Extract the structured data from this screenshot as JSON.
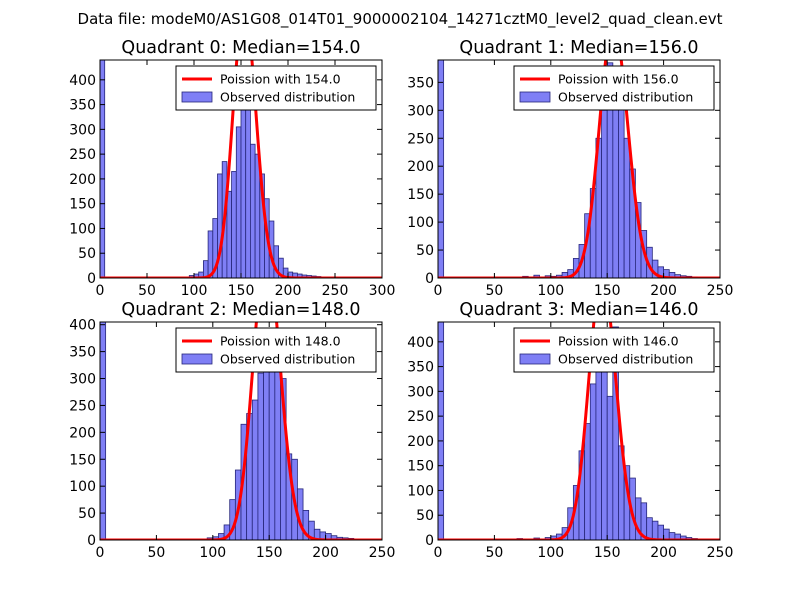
{
  "figure_title": "Data file: modeM0/AS1G08_014T01_9000002104_14271cztM0_level2_quad_clean.evt",
  "colors": {
    "bar_fill": "#7f7ff5",
    "bar_edge": "#26267a",
    "fit_line": "#ff0000",
    "axes": "#000000"
  },
  "chart_data": [
    {
      "type": "bar",
      "title": "Quadrant 0: Median=154.0",
      "median": 154.0,
      "bin_width": 5,
      "xlim": [
        0,
        300
      ],
      "ylim": [
        0,
        440
      ],
      "xticks": [
        0,
        50,
        100,
        150,
        200,
        250,
        300
      ],
      "yticks": [
        0,
        50,
        100,
        150,
        200,
        250,
        300,
        350,
        400
      ],
      "xtick_labels": [
        "0",
        "50",
        "100",
        "150",
        "200",
        "250",
        "300"
      ],
      "ytick_labels": [
        "0",
        "50",
        "100",
        "150",
        "200",
        "250",
        "300",
        "350",
        "400"
      ],
      "legend": {
        "position": "top-right",
        "entries": [
          "Poission with 154.0",
          "Observed distribution"
        ]
      },
      "bins": [
        {
          "x": 0,
          "count": 440
        },
        {
          "x": 95,
          "count": 5
        },
        {
          "x": 100,
          "count": 8
        },
        {
          "x": 105,
          "count": 12
        },
        {
          "x": 110,
          "count": 35
        },
        {
          "x": 115,
          "count": 95
        },
        {
          "x": 120,
          "count": 120
        },
        {
          "x": 125,
          "count": 210
        },
        {
          "x": 130,
          "count": 235
        },
        {
          "x": 135,
          "count": 175
        },
        {
          "x": 140,
          "count": 215
        },
        {
          "x": 145,
          "count": 305
        },
        {
          "x": 150,
          "count": 420
        },
        {
          "x": 155,
          "count": 360
        },
        {
          "x": 160,
          "count": 270
        },
        {
          "x": 165,
          "count": 250
        },
        {
          "x": 170,
          "count": 210
        },
        {
          "x": 175,
          "count": 160
        },
        {
          "x": 180,
          "count": 115
        },
        {
          "x": 185,
          "count": 65
        },
        {
          "x": 190,
          "count": 40
        },
        {
          "x": 195,
          "count": 20
        },
        {
          "x": 200,
          "count": 12
        },
        {
          "x": 205,
          "count": 10
        },
        {
          "x": 210,
          "count": 8
        },
        {
          "x": 215,
          "count": 6
        },
        {
          "x": 220,
          "count": 5
        },
        {
          "x": 225,
          "count": 4
        },
        {
          "x": 230,
          "count": 3
        },
        {
          "x": 240,
          "count": 2
        },
        {
          "x": 250,
          "count": 1
        }
      ]
    },
    {
      "type": "bar",
      "title": "Quadrant 1: Median=156.0",
      "median": 156.0,
      "bin_width": 5,
      "xlim": [
        0,
        250
      ],
      "ylim": [
        0,
        390
      ],
      "xticks": [
        0,
        50,
        100,
        150,
        200,
        250
      ],
      "yticks": [
        0,
        50,
        100,
        150,
        200,
        250,
        300,
        350
      ],
      "xtick_labels": [
        "0",
        "50",
        "100",
        "150",
        "200",
        "250"
      ],
      "ytick_labels": [
        "0",
        "50",
        "100",
        "150",
        "200",
        "250",
        "300",
        "350"
      ],
      "legend": {
        "position": "top-right",
        "entries": [
          "Poission with 156.0",
          "Observed distribution"
        ]
      },
      "bins": [
        {
          "x": 0,
          "count": 390
        },
        {
          "x": 75,
          "count": 3
        },
        {
          "x": 85,
          "count": 5
        },
        {
          "x": 95,
          "count": 4
        },
        {
          "x": 100,
          "count": 3
        },
        {
          "x": 105,
          "count": 5
        },
        {
          "x": 110,
          "count": 10
        },
        {
          "x": 115,
          "count": 15
        },
        {
          "x": 120,
          "count": 35
        },
        {
          "x": 125,
          "count": 60
        },
        {
          "x": 130,
          "count": 115
        },
        {
          "x": 135,
          "count": 160
        },
        {
          "x": 140,
          "count": 250
        },
        {
          "x": 145,
          "count": 300
        },
        {
          "x": 150,
          "count": 385
        },
        {
          "x": 155,
          "count": 360
        },
        {
          "x": 160,
          "count": 320
        },
        {
          "x": 165,
          "count": 250
        },
        {
          "x": 170,
          "count": 195
        },
        {
          "x": 175,
          "count": 135
        },
        {
          "x": 180,
          "count": 85
        },
        {
          "x": 185,
          "count": 55
        },
        {
          "x": 190,
          "count": 32
        },
        {
          "x": 195,
          "count": 20
        },
        {
          "x": 200,
          "count": 15
        },
        {
          "x": 205,
          "count": 10
        },
        {
          "x": 210,
          "count": 6
        },
        {
          "x": 215,
          "count": 4
        },
        {
          "x": 220,
          "count": 3
        },
        {
          "x": 225,
          "count": 2
        }
      ]
    },
    {
      "type": "bar",
      "title": "Quadrant 2: Median=148.0",
      "median": 148.0,
      "bin_width": 5,
      "xlim": [
        0,
        250
      ],
      "ylim": [
        0,
        405
      ],
      "xticks": [
        0,
        50,
        100,
        150,
        200,
        250
      ],
      "yticks": [
        0,
        50,
        100,
        150,
        200,
        250,
        300,
        350,
        400
      ],
      "xtick_labels": [
        "0",
        "50",
        "100",
        "150",
        "200",
        "250"
      ],
      "ytick_labels": [
        "0",
        "50",
        "100",
        "150",
        "200",
        "250",
        "300",
        "350",
        "400"
      ],
      "legend": {
        "position": "top-right",
        "entries": [
          "Poission with 148.0",
          "Observed distribution"
        ]
      },
      "bins": [
        {
          "x": 0,
          "count": 405
        },
        {
          "x": 95,
          "count": 4
        },
        {
          "x": 100,
          "count": 6
        },
        {
          "x": 105,
          "count": 12
        },
        {
          "x": 110,
          "count": 28
        },
        {
          "x": 115,
          "count": 75
        },
        {
          "x": 120,
          "count": 130
        },
        {
          "x": 125,
          "count": 215
        },
        {
          "x": 130,
          "count": 235
        },
        {
          "x": 135,
          "count": 260
        },
        {
          "x": 140,
          "count": 310
        },
        {
          "x": 145,
          "count": 385
        },
        {
          "x": 150,
          "count": 375
        },
        {
          "x": 155,
          "count": 340
        },
        {
          "x": 160,
          "count": 300
        },
        {
          "x": 165,
          "count": 160
        },
        {
          "x": 170,
          "count": 150
        },
        {
          "x": 175,
          "count": 95
        },
        {
          "x": 180,
          "count": 55
        },
        {
          "x": 185,
          "count": 35
        },
        {
          "x": 190,
          "count": 20
        },
        {
          "x": 195,
          "count": 15
        },
        {
          "x": 200,
          "count": 12
        },
        {
          "x": 205,
          "count": 8
        },
        {
          "x": 210,
          "count": 5
        },
        {
          "x": 215,
          "count": 4
        },
        {
          "x": 220,
          "count": 3
        },
        {
          "x": 225,
          "count": 2
        }
      ]
    },
    {
      "type": "bar",
      "title": "Quadrant 3: Median=146.0",
      "median": 146.0,
      "bin_width": 5,
      "xlim": [
        0,
        250
      ],
      "ylim": [
        0,
        440
      ],
      "xticks": [
        0,
        50,
        100,
        150,
        200,
        250
      ],
      "yticks": [
        0,
        50,
        100,
        150,
        200,
        250,
        300,
        350,
        400
      ],
      "xtick_labels": [
        "0",
        "50",
        "100",
        "150",
        "200",
        "250"
      ],
      "ytick_labels": [
        "0",
        "50",
        "100",
        "150",
        "200",
        "250",
        "300",
        "350",
        "400"
      ],
      "legend": {
        "position": "top-right",
        "entries": [
          "Poission with 146.0",
          "Observed distribution"
        ]
      },
      "bins": [
        {
          "x": 0,
          "count": 440
        },
        {
          "x": 70,
          "count": 3
        },
        {
          "x": 85,
          "count": 4
        },
        {
          "x": 95,
          "count": 5
        },
        {
          "x": 100,
          "count": 8
        },
        {
          "x": 105,
          "count": 12
        },
        {
          "x": 110,
          "count": 25
        },
        {
          "x": 115,
          "count": 65
        },
        {
          "x": 120,
          "count": 110
        },
        {
          "x": 125,
          "count": 180
        },
        {
          "x": 130,
          "count": 235
        },
        {
          "x": 135,
          "count": 315
        },
        {
          "x": 140,
          "count": 380
        },
        {
          "x": 145,
          "count": 340
        },
        {
          "x": 150,
          "count": 290
        },
        {
          "x": 155,
          "count": 430
        },
        {
          "x": 160,
          "count": 190
        },
        {
          "x": 165,
          "count": 150
        },
        {
          "x": 170,
          "count": 125
        },
        {
          "x": 175,
          "count": 85
        },
        {
          "x": 180,
          "count": 75
        },
        {
          "x": 185,
          "count": 45
        },
        {
          "x": 190,
          "count": 38
        },
        {
          "x": 195,
          "count": 30
        },
        {
          "x": 200,
          "count": 22
        },
        {
          "x": 205,
          "count": 15
        },
        {
          "x": 210,
          "count": 12
        },
        {
          "x": 215,
          "count": 8
        },
        {
          "x": 220,
          "count": 5
        },
        {
          "x": 225,
          "count": 3
        }
      ]
    }
  ]
}
